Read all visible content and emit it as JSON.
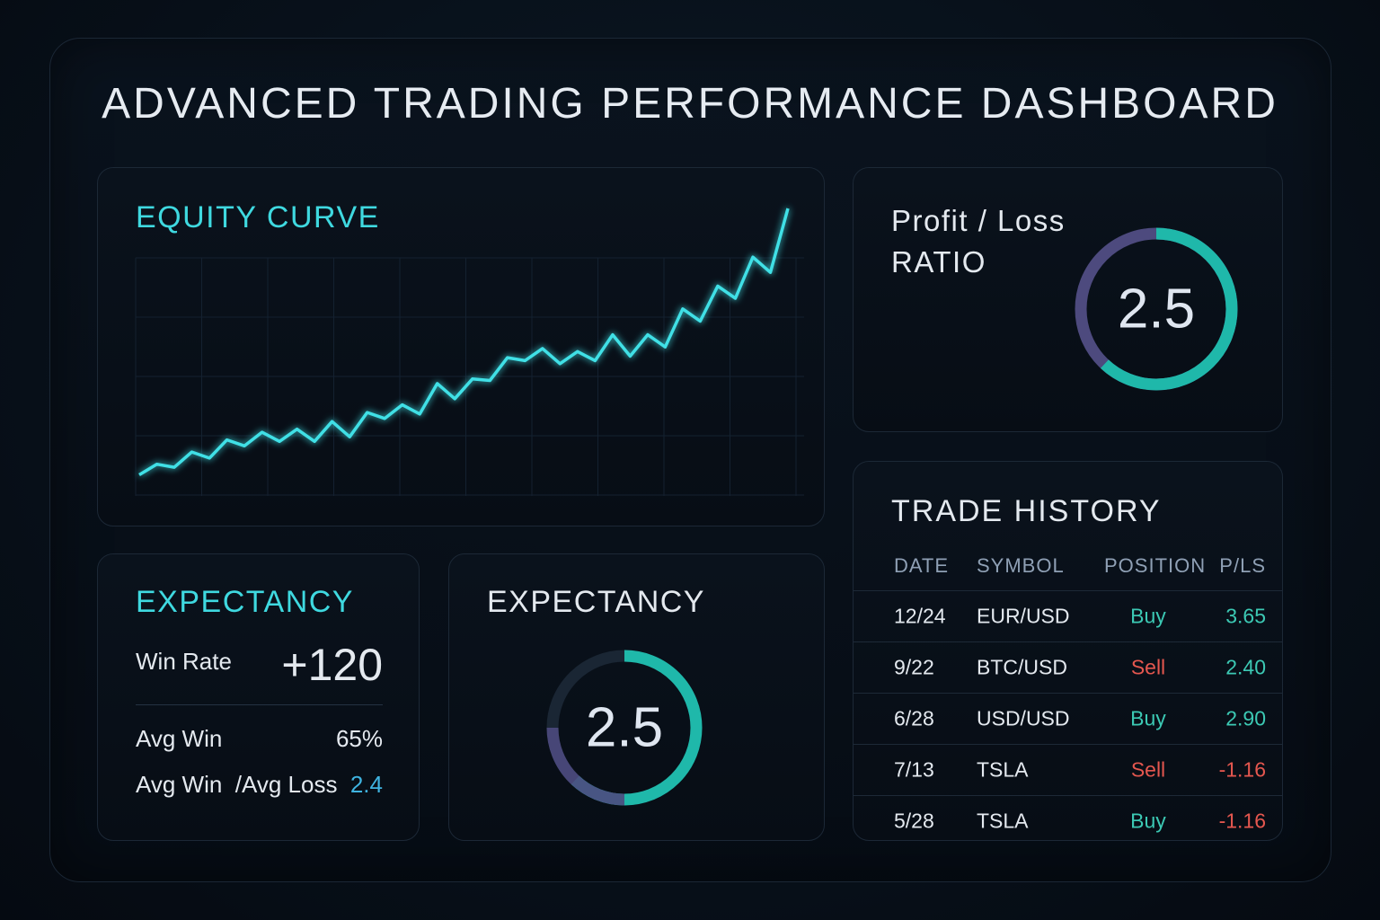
{
  "title": "ADVANCED TRADING PERFORMANCE DASHBOARD",
  "colors": {
    "accent": "#3fd9e0",
    "buy": "#3cc9b4",
    "sell": "#e5574f",
    "gauge_teal": "#1fb8aa",
    "gauge_purple": "#4d4a7e"
  },
  "equity_curve": {
    "title": "EQUITY CURVE",
    "values": [
      5,
      12,
      10,
      20,
      16,
      28,
      24,
      33,
      27,
      35,
      27,
      40,
      30,
      46,
      42,
      51,
      45,
      65,
      55,
      68,
      67,
      82,
      80,
      88,
      78,
      86,
      80,
      97,
      83,
      97,
      89,
      114,
      106,
      129,
      121,
      148,
      138,
      180
    ]
  },
  "pl_ratio": {
    "title_line1": "Profit / Loss",
    "title_line2": "RATIO",
    "value": "2.5",
    "fraction": 0.62
  },
  "expectancy_stats": {
    "title": "EXPECTANCY",
    "rows": [
      {
        "label": "Win Rate",
        "value": "+120"
      },
      {
        "label": "Avg Win",
        "value": "65%"
      },
      {
        "label": "Avg Win  /Avg Loss",
        "value": "2.4"
      }
    ]
  },
  "expectancy_gauge": {
    "title": "EXPECTANCY",
    "value": "2.5",
    "fraction": 0.62
  },
  "trade_history": {
    "title": "TRADE HISTORY",
    "headers": {
      "date": "DATE",
      "symbol": "SYMBOL",
      "position": "POSITION",
      "pl": "P/LS"
    },
    "rows": [
      {
        "date": "12/24",
        "symbol": "EUR/USD",
        "position": "Buy",
        "pl": "3.65"
      },
      {
        "date": "9/22",
        "symbol": "BTC/USD",
        "position": "Sell",
        "pl": "2.40"
      },
      {
        "date": "6/28",
        "symbol": "USD/USD",
        "position": "Buy",
        "pl": "2.90"
      },
      {
        "date": "7/13",
        "symbol": "TSLA",
        "position": "Sell",
        "pl": "-1.16"
      },
      {
        "date": "5/28",
        "symbol": "TSLA",
        "position": "Buy",
        "pl": "-1.16"
      }
    ]
  }
}
